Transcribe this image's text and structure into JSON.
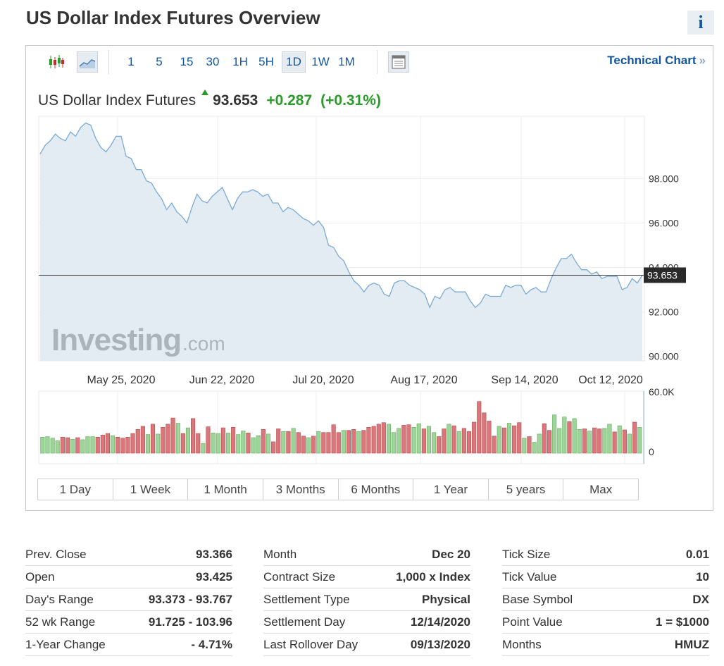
{
  "page_title": "US Dollar Index Futures Overview",
  "info_icon": "i",
  "toolbar": {
    "intervals": [
      "1",
      "5",
      "15",
      "30",
      "1H",
      "5H",
      "1D",
      "1W",
      "1M"
    ],
    "active_interval": "1D",
    "technical_chart_label": "Technical Chart",
    "technical_chart_chevron": "»"
  },
  "quote": {
    "name": "US Dollar Index Futures",
    "last": "93.653",
    "change": "+0.287",
    "change_pct": "(+0.31%)",
    "direction": "up",
    "up_color": "#2a9c2a"
  },
  "watermark": {
    "brand": "Investing",
    "suffix": ".com"
  },
  "chart_data": {
    "type": "area",
    "price_axis_ticks": [
      "98.000",
      "96.000",
      "94.000",
      "92.000",
      "90.000"
    ],
    "price_axis_tick_values": [
      98,
      96,
      94,
      92,
      90
    ],
    "price_range": [
      89.8,
      100.8
    ],
    "date_labels": [
      "May 25, 2020",
      "Jun 22, 2020",
      "Jul 20, 2020",
      "Aug 17, 2020",
      "Sep 14, 2020",
      "Oct 12, 2020"
    ],
    "current_value_label": "93.653",
    "current_value": 93.653,
    "price_series": [
      99.1,
      99.5,
      99.7,
      100.0,
      99.8,
      99.7,
      100.1,
      99.9,
      100.3,
      100.5,
      100.4,
      99.8,
      99.4,
      99.2,
      99.5,
      99.9,
      99.9,
      99.0,
      98.9,
      98.4,
      98.4,
      97.9,
      97.8,
      97.4,
      97.1,
      96.6,
      96.9,
      96.5,
      96.3,
      96.0,
      96.7,
      97.3,
      97.0,
      96.9,
      97.2,
      97.4,
      97.6,
      97.1,
      96.6,
      97.1,
      97.4,
      97.4,
      97.5,
      97.4,
      97.2,
      97.3,
      96.9,
      96.9,
      96.5,
      96.7,
      96.6,
      96.4,
      96.2,
      96.1,
      95.9,
      96.1,
      95.8,
      95.0,
      94.9,
      94.5,
      94.3,
      93.8,
      93.4,
      93.2,
      92.9,
      93.2,
      93.3,
      93.2,
      92.8,
      92.7,
      93.3,
      93.4,
      93.4,
      93.2,
      93.1,
      93.0,
      92.8,
      92.2,
      92.7,
      92.6,
      93.0,
      93.1,
      92.9,
      92.9,
      92.9,
      92.5,
      92.2,
      92.4,
      92.8,
      92.7,
      92.7,
      92.7,
      93.2,
      93.1,
      93.2,
      93.2,
      92.8,
      93.0,
      93.1,
      92.9,
      92.9,
      93.5,
      94.0,
      94.4,
      94.4,
      94.6,
      94.2,
      93.9,
      93.9,
      93.7,
      93.8,
      93.5,
      93.6,
      93.6,
      93.6,
      93.0,
      93.1,
      93.5,
      93.3,
      93.65
    ],
    "volume_axis_ticks": [
      "60.0K",
      "0"
    ],
    "volume_max": 60000,
    "volume_series": [
      15500,
      16000,
      14500,
      12000,
      15500,
      15000,
      13500,
      15000,
      13000,
      16000,
      16000,
      15500,
      17500,
      19000,
      17000,
      15500,
      14500,
      15500,
      19000,
      23000,
      26000,
      18000,
      28000,
      18500,
      25000,
      28000,
      34000,
      29000,
      19000,
      24500,
      33500,
      19000,
      9500,
      25500,
      19500,
      19000,
      24500,
      19500,
      25000,
      18000,
      21500,
      19500,
      15000,
      17000,
      23000,
      18500,
      11000,
      23500,
      21000,
      21000,
      24000,
      20000,
      16500,
      15000,
      16500,
      21000,
      20000,
      20000,
      27500,
      20000,
      22000,
      22000,
      23000,
      21000,
      22000,
      25000,
      26000,
      28000,
      29500,
      28000,
      20000,
      24000,
      27000,
      27500,
      25000,
      28500,
      23500,
      26000,
      20000,
      16000,
      23500,
      28000,
      26500,
      21000,
      24000,
      21000,
      30000,
      50000,
      39000,
      31000,
      16500,
      26000,
      24500,
      29000,
      26500,
      29500,
      14500,
      16000,
      10500,
      18500,
      28500,
      22000,
      37000,
      24000,
      35000,
      30500,
      33500,
      23000,
      23500,
      21500,
      24500,
      23500,
      24000,
      28000,
      20500,
      26500,
      22500,
      18500,
      30000,
      25000
    ],
    "volume_colors": [
      "g",
      "g",
      "g",
      "g",
      "r",
      "r",
      "g",
      "r",
      "g",
      "g",
      "g",
      "r",
      "r",
      "r",
      "g",
      "r",
      "r",
      "r",
      "r",
      "r",
      "r",
      "g",
      "r",
      "g",
      "r",
      "r",
      "r",
      "g",
      "r",
      "g",
      "r",
      "r",
      "g",
      "r",
      "g",
      "g",
      "r",
      "g",
      "r",
      "g",
      "g",
      "r",
      "g",
      "g",
      "r",
      "g",
      "r",
      "r",
      "g",
      "r",
      "g",
      "r",
      "r",
      "g",
      "r",
      "g",
      "r",
      "r",
      "r",
      "r",
      "g",
      "r",
      "r",
      "g",
      "r",
      "r",
      "r",
      "r",
      "r",
      "g",
      "g",
      "g",
      "r",
      "r",
      "g",
      "g",
      "r",
      "g",
      "g",
      "r",
      "r",
      "g",
      "r",
      "g",
      "r",
      "r",
      "r",
      "r",
      "r",
      "r",
      "r",
      "g",
      "r",
      "g",
      "r",
      "r",
      "g",
      "r",
      "g",
      "g",
      "r",
      "r",
      "g",
      "g",
      "g",
      "r",
      "g",
      "g",
      "r",
      "g",
      "r",
      "r",
      "g",
      "g",
      "r",
      "g",
      "r",
      "g",
      "r",
      "g"
    ]
  },
  "time_ranges": [
    "1 Day",
    "1 Week",
    "1 Month",
    "3 Months",
    "6 Months",
    "1 Year",
    "5 years",
    "Max"
  ],
  "stats": [
    [
      {
        "label": "Prev. Close",
        "value": "93.366"
      },
      {
        "label": "Open",
        "value": "93.425"
      },
      {
        "label": "Day's Range",
        "value": "93.373 - 93.767"
      },
      {
        "label": "52 wk Range",
        "value": "91.725 - 103.96"
      },
      {
        "label": "1-Year Change",
        "value": "- 4.71%"
      }
    ],
    [
      {
        "label": "Month",
        "value": "Dec 20"
      },
      {
        "label": "Contract Size",
        "value": "1,000 x Index"
      },
      {
        "label": "Settlement Type",
        "value": "Physical"
      },
      {
        "label": "Settlement Day",
        "value": "12/14/2020"
      },
      {
        "label": "Last Rollover Day",
        "value": "09/13/2020"
      }
    ],
    [
      {
        "label": "Tick Size",
        "value": "0.01"
      },
      {
        "label": "Tick Value",
        "value": "10"
      },
      {
        "label": "Base Symbol",
        "value": "DX"
      },
      {
        "label": "Point Value",
        "value": "1 = $1000"
      },
      {
        "label": "Months",
        "value": "HMUZ"
      }
    ]
  ],
  "colors": {
    "link_blue": "#1256a0",
    "area_fill": "#e4ecf3",
    "line": "#7aaad4",
    "vol_up": "#9ed49a",
    "vol_down": "#d9777a"
  }
}
